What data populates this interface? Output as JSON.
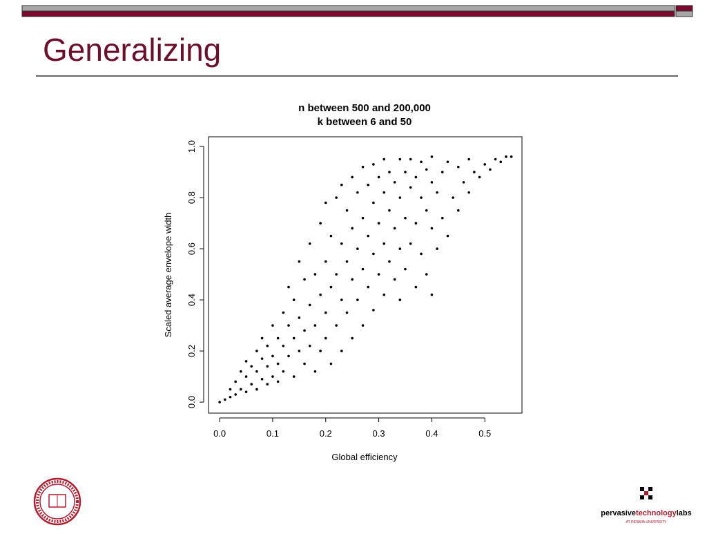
{
  "slide": {
    "title": "Generalizing"
  },
  "logo": {
    "name_parts": [
      "pervasive",
      "technology",
      "labs"
    ],
    "tagline": "AT INDIANA UNIVERSITY"
  },
  "chart_data": {
    "type": "scatter",
    "title": "n between 500 and 200,000",
    "subtitle": "k between 6 and 50",
    "x_label": "Global efficiency",
    "y_label": "Scaled average envelope width",
    "color": "#000000",
    "xlim": [
      -0.021,
      0.57
    ],
    "ylim": [
      -0.043,
      1.038
    ],
    "xticks": [
      {
        "value": 0,
        "label": "0.0"
      },
      0.1,
      0.2,
      0.3,
      0.4,
      0.5
    ],
    "yticks": [
      {
        "value": 0,
        "label": "0.0"
      },
      0.2,
      0.4,
      0.6,
      0.8,
      {
        "value": 1,
        "label": "1.0"
      }
    ],
    "x": [
      0,
      0.01,
      0.02,
      0.02,
      0.03,
      0.03,
      0.04,
      0.04,
      0.05,
      0.05,
      0.05,
      0.06,
      0.06,
      0.07,
      0.07,
      0.07,
      0.08,
      0.08,
      0.08,
      0.09,
      0.09,
      0.09,
      0.1,
      0.1,
      0.1,
      0.11,
      0.11,
      0.11,
      0.12,
      0.12,
      0.12,
      0.13,
      0.13,
      0.13,
      0.14,
      0.14,
      0.14,
      0.15,
      0.15,
      0.15,
      0.16,
      0.16,
      0.16,
      0.17,
      0.17,
      0.17,
      0.18,
      0.18,
      0.18,
      0.19,
      0.19,
      0.19,
      0.2,
      0.2,
      0.2,
      0.2,
      0.21,
      0.21,
      0.21,
      0.22,
      0.22,
      0.22,
      0.23,
      0.23,
      0.23,
      0.23,
      0.24,
      0.24,
      0.24,
      0.25,
      0.25,
      0.25,
      0.25,
      0.26,
      0.26,
      0.26,
      0.27,
      0.27,
      0.27,
      0.27,
      0.28,
      0.28,
      0.28,
      0.29,
      0.29,
      0.29,
      0.29,
      0.3,
      0.3,
      0.3,
      0.31,
      0.31,
      0.31,
      0.31,
      0.32,
      0.32,
      0.32,
      0.33,
      0.33,
      0.33,
      0.34,
      0.34,
      0.34,
      0.34,
      0.35,
      0.35,
      0.35,
      0.36,
      0.36,
      0.36,
      0.37,
      0.37,
      0.37,
      0.38,
      0.38,
      0.38,
      0.39,
      0.39,
      0.39,
      0.4,
      0.4,
      0.4,
      0.4,
      0.41,
      0.41,
      0.42,
      0.42,
      0.43,
      0.43,
      0.44,
      0.45,
      0.45,
      0.46,
      0.47,
      0.47,
      0.48,
      0.49,
      0.5,
      0.51,
      0.52,
      0.53,
      0.54,
      0.55
    ],
    "values": [
      0,
      0.01,
      0.02,
      0.05,
      0.03,
      0.08,
      0.05,
      0.12,
      0.04,
      0.1,
      0.16,
      0.07,
      0.14,
      0.05,
      0.12,
      0.2,
      0.09,
      0.17,
      0.25,
      0.07,
      0.14,
      0.22,
      0.1,
      0.18,
      0.3,
      0.08,
      0.15,
      0.25,
      0.12,
      0.22,
      0.35,
      0.18,
      0.3,
      0.45,
      0.1,
      0.25,
      0.4,
      0.2,
      0.33,
      0.55,
      0.15,
      0.28,
      0.48,
      0.22,
      0.38,
      0.62,
      0.12,
      0.3,
      0.5,
      0.2,
      0.42,
      0.7,
      0.25,
      0.35,
      0.55,
      0.78,
      0.15,
      0.45,
      0.65,
      0.3,
      0.5,
      0.8,
      0.2,
      0.4,
      0.62,
      0.85,
      0.35,
      0.55,
      0.75,
      0.25,
      0.48,
      0.68,
      0.88,
      0.4,
      0.6,
      0.82,
      0.3,
      0.52,
      0.72,
      0.92,
      0.45,
      0.65,
      0.85,
      0.36,
      0.58,
      0.78,
      0.93,
      0.5,
      0.7,
      0.88,
      0.42,
      0.62,
      0.82,
      0.95,
      0.55,
      0.75,
      0.9,
      0.48,
      0.68,
      0.86,
      0.4,
      0.6,
      0.8,
      0.95,
      0.52,
      0.72,
      0.9,
      0.62,
      0.84,
      0.95,
      0.45,
      0.7,
      0.88,
      0.58,
      0.8,
      0.94,
      0.5,
      0.75,
      0.91,
      0.42,
      0.68,
      0.86,
      0.96,
      0.6,
      0.82,
      0.72,
      0.9,
      0.65,
      0.94,
      0.8,
      0.75,
      0.92,
      0.86,
      0.82,
      0.95,
      0.9,
      0.88,
      0.93,
      0.91,
      0.95,
      0.94,
      0.96,
      0.96
    ]
  }
}
